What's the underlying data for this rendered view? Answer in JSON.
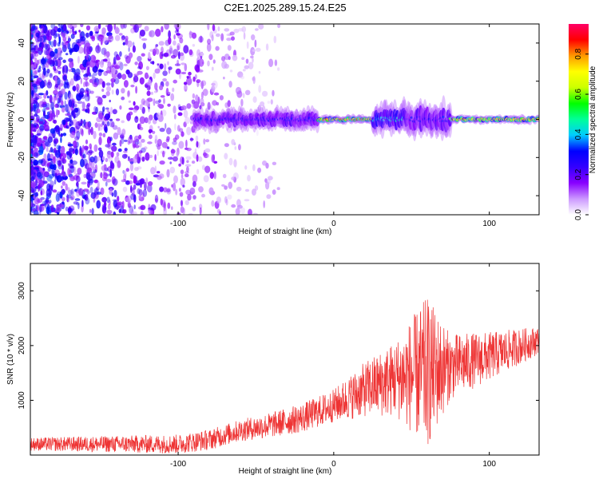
{
  "figure": {
    "title": "C2E1.2025.289.15.24.E25"
  },
  "chart_data": [
    {
      "type": "heatmap",
      "title": "C2E1.2025.289.15.24.E25",
      "xlabel": "Height of straight line (km)",
      "ylabel": "Frequency (Hz)",
      "xlim": [
        -195,
        132
      ],
      "ylim": [
        -50,
        50
      ],
      "xticks": [
        -100,
        0,
        100
      ],
      "yticks": [
        -40,
        -20,
        0,
        20,
        40
      ],
      "colorbar": {
        "label": "Normalized spectral amplitude",
        "range": [
          0,
          0.95
        ],
        "ticks": [
          "0.0",
          "0.2",
          "0.4",
          "0.6",
          "0.8"
        ],
        "colors": [
          "#ffffff",
          "#cc99ff",
          "#8800ff",
          "#3300ff",
          "#0000ff",
          "#00ccff",
          "#00ff99",
          "#00ff00",
          "#ccff00",
          "#ffff00",
          "#ff9900",
          "#ff0000",
          "#ff0066"
        ]
      },
      "description_of_content": "noise region below ~-85 km; narrow band near 0 Hz from ~-90 to 132 km",
      "band_segments": [
        {
          "x_range": [
            -90,
            -10
          ],
          "half_width_hz": 5,
          "peak_amplitude": 0.35
        },
        {
          "x_range": [
            -10,
            25
          ],
          "half_width_hz": 2,
          "peak_amplitude": 0.9
        },
        {
          "x_range": [
            25,
            45
          ],
          "half_width_hz": 7,
          "peak_amplitude": 0.5
        },
        {
          "x_range": [
            45,
            75
          ],
          "half_width_hz": 8,
          "peak_amplitude": 0.35
        },
        {
          "x_range": [
            75,
            132
          ],
          "half_width_hz": 2,
          "peak_amplitude": 0.85
        }
      ]
    },
    {
      "type": "line",
      "xlabel": "Height of straight line (km)",
      "ylabel": "SNR (10 * v/v)",
      "xlim": [
        -195,
        132
      ],
      "ylim": [
        0,
        3500
      ],
      "xticks": [
        -100,
        0,
        100
      ],
      "yticks": [
        1000,
        2000,
        3000
      ],
      "color": "#ee3333",
      "trend": [
        {
          "x": -195,
          "y": 200
        },
        {
          "x": -100,
          "y": 200
        },
        {
          "x": -80,
          "y": 280
        },
        {
          "x": -60,
          "y": 450
        },
        {
          "x": -40,
          "y": 550
        },
        {
          "x": -20,
          "y": 680
        },
        {
          "x": 0,
          "y": 900
        },
        {
          "x": 20,
          "y": 1200
        },
        {
          "x": 40,
          "y": 1400
        },
        {
          "x": 60,
          "y": 1500
        },
        {
          "x": 80,
          "y": 1650
        },
        {
          "x": 100,
          "y": 1800
        },
        {
          "x": 132,
          "y": 2100
        }
      ],
      "noise_amplitude": [
        {
          "x": -195,
          "a": 120
        },
        {
          "x": -60,
          "a": 200
        },
        {
          "x": 0,
          "a": 300
        },
        {
          "x": 40,
          "a": 700
        },
        {
          "x": 60,
          "a": 1400
        },
        {
          "x": 75,
          "a": 600
        },
        {
          "x": 132,
          "a": 250
        }
      ]
    }
  ]
}
